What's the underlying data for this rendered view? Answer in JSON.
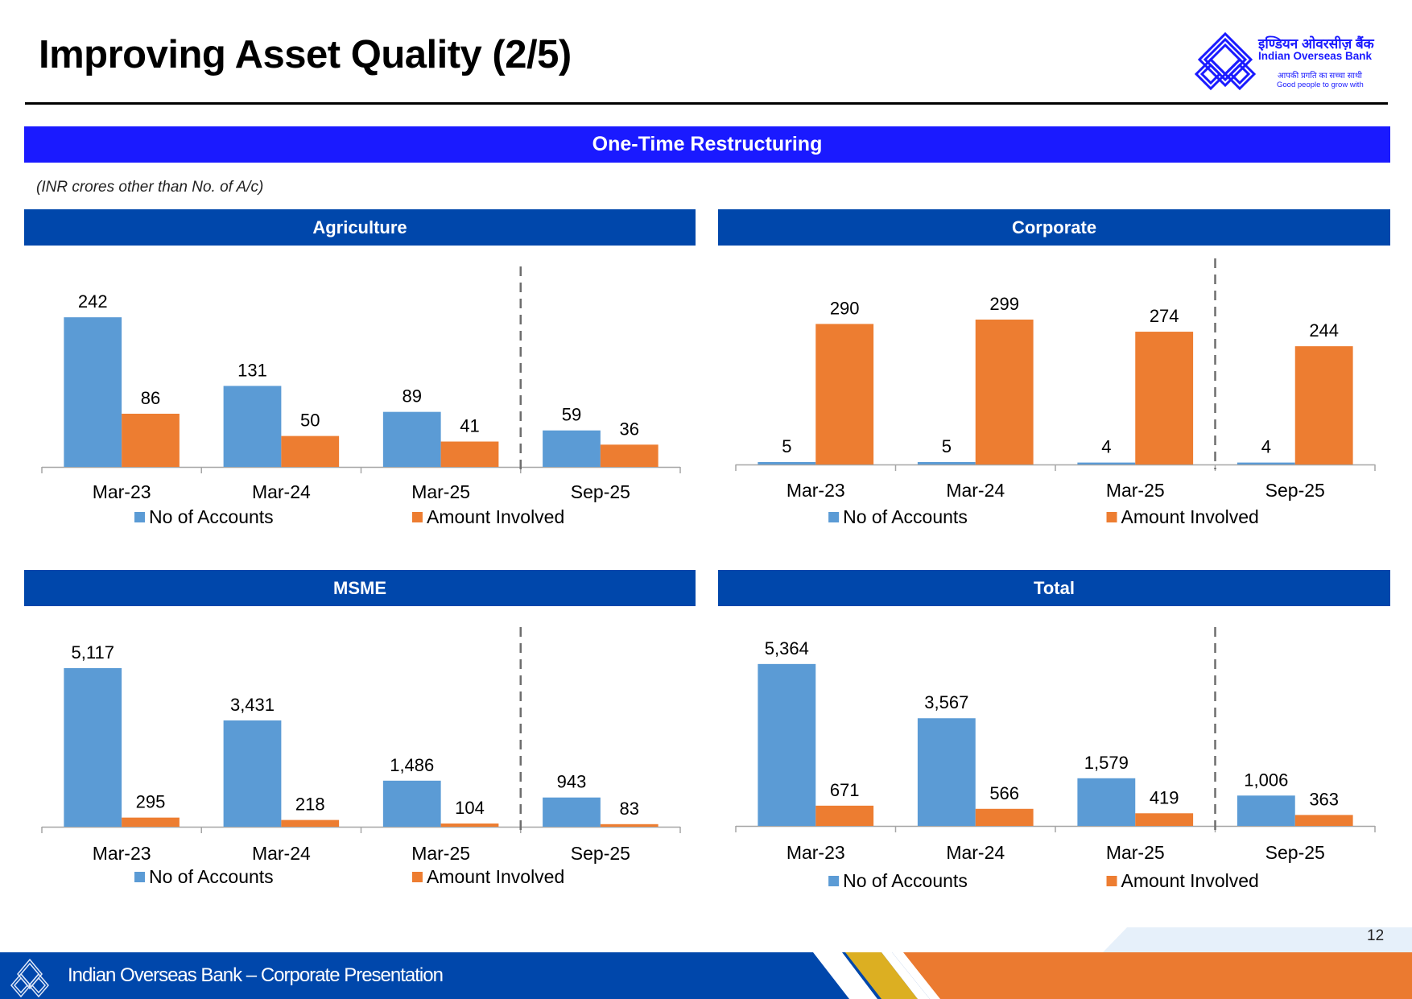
{
  "header": {
    "title": "Improving Asset Quality (2/5)",
    "logo": {
      "hindi_name": "इण्डियन ओवरसीज़ बैंक",
      "name": "Indian Overseas Bank",
      "tagline_hindi": "आपकी प्रगति का सच्चा साथी",
      "tagline": "Good people to grow with"
    }
  },
  "main_banner": "One-Time Restructuring",
  "unit_note": "(INR crores other than No. of A/c)",
  "colors": {
    "no_of_accounts": "#5B9BD5",
    "amount_involved": "#ED7D31",
    "banner": "#1A1AFF",
    "section_header": "#0047AB"
  },
  "chart_data": [
    {
      "type": "bar",
      "title": "Agriculture",
      "categories": [
        "Mar-23",
        "Mar-24",
        "Mar-25",
        "Sep-25"
      ],
      "series": [
        {
          "name": "No of Accounts",
          "values": [
            242,
            131,
            89,
            59
          ],
          "labels": [
            "242",
            "131",
            "89",
            "59"
          ]
        },
        {
          "name": "Amount Involved",
          "values": [
            86,
            50,
            41,
            36
          ],
          "labels": [
            "86",
            "50",
            "41",
            "36"
          ]
        }
      ],
      "divider_before_category": "Sep-25",
      "legend": "bottom",
      "grid": false
    },
    {
      "type": "bar",
      "title": "Corporate",
      "categories": [
        "Mar-23",
        "Mar-24",
        "Mar-25",
        "Sep-25"
      ],
      "series": [
        {
          "name": "No of Accounts",
          "values": [
            5,
            5,
            4,
            4
          ],
          "labels": [
            "5",
            "5",
            "4",
            "4"
          ]
        },
        {
          "name": "Amount Involved",
          "values": [
            290,
            299,
            274,
            244
          ],
          "labels": [
            "290",
            "299",
            "274",
            "244"
          ]
        }
      ],
      "divider_before_category": "Sep-25",
      "legend": "bottom",
      "grid": false
    },
    {
      "type": "bar",
      "title": "MSME",
      "categories": [
        "Mar-23",
        "Mar-24",
        "Mar-25",
        "Sep-25"
      ],
      "series": [
        {
          "name": "No of Accounts",
          "values": [
            5117,
            3431,
            1486,
            943
          ],
          "labels": [
            "5,117",
            "3,431",
            "1,486",
            "943"
          ]
        },
        {
          "name": "Amount Involved",
          "values": [
            295,
            218,
            104,
            83
          ],
          "labels": [
            "295",
            "218",
            "104",
            "83"
          ]
        }
      ],
      "divider_before_category": "Sep-25",
      "legend": "bottom",
      "grid": false
    },
    {
      "type": "bar",
      "title": "Total",
      "categories": [
        "Mar-23",
        "Mar-24",
        "Mar-25",
        "Sep-25"
      ],
      "series": [
        {
          "name": "No of Accounts",
          "values": [
            5364,
            3567,
            1579,
            1006
          ],
          "labels": [
            "5,364",
            "3,567",
            "1,579",
            "1,006"
          ]
        },
        {
          "name": "Amount Involved",
          "values": [
            671,
            566,
            419,
            363
          ],
          "labels": [
            "671",
            "566",
            "419",
            "363"
          ]
        }
      ],
      "divider_before_category": "Sep-25",
      "legend": "bottom",
      "grid": false
    }
  ],
  "footer": {
    "text": "Indian Overseas Bank – Corporate Presentation",
    "page_number": "12"
  }
}
